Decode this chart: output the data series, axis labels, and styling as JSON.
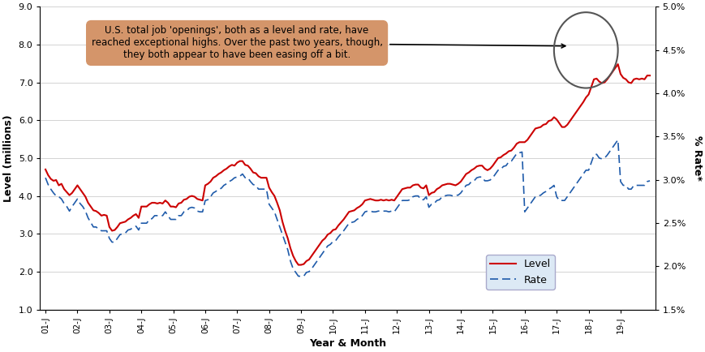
{
  "xlabel": "Year & Month",
  "ylabel_left": "Level (millions)",
  "ylabel_right": "% Rate*",
  "ylim_left": [
    1.0,
    9.0
  ],
  "ylim_right": [
    0.015,
    0.05
  ],
  "yticks_left": [
    1.0,
    2.0,
    3.0,
    4.0,
    5.0,
    6.0,
    7.0,
    8.0,
    9.0
  ],
  "yticks_right": [
    0.015,
    0.02,
    0.025,
    0.03,
    0.035,
    0.04,
    0.045,
    0.05
  ],
  "ytick_labels_right": [
    "1.5%",
    "2.0%",
    "2.5%",
    "3.0%",
    "3.5%",
    "4.0%",
    "4.5%",
    "5.0%"
  ],
  "annotation_text": "U.S. total job 'openings', both as a level and rate, have\nreached exceptional highs. Over the past two years, though,\nthey both appear to have been easing off a bit.",
  "level_color": "#cc0000",
  "rate_color": "#1f5baa",
  "background_color": "#ffffff",
  "grid_color": "#cccccc",
  "annotation_box_color": "#d4956a",
  "legend_facecolor": "#dce9f5",
  "x_tick_labels": [
    "01-J",
    "02-J",
    "03-J",
    "04-J",
    "05-J",
    "06-J",
    "07-J",
    "08-J",
    "09-J",
    "10-J",
    "11-J",
    "12-J",
    "13-J",
    "14-J",
    "15-J",
    "16-J",
    "17-J",
    "18-J",
    "19-J"
  ],
  "level_data": [
    4.7,
    4.55,
    4.45,
    4.4,
    4.42,
    4.28,
    4.32,
    4.18,
    4.1,
    4.02,
    4.08,
    4.18,
    4.28,
    4.18,
    4.08,
    3.98,
    3.82,
    3.72,
    3.62,
    3.6,
    3.55,
    3.48,
    3.5,
    3.48,
    3.18,
    3.08,
    3.1,
    3.18,
    3.28,
    3.3,
    3.32,
    3.38,
    3.42,
    3.48,
    3.52,
    3.42,
    3.72,
    3.72,
    3.72,
    3.78,
    3.82,
    3.82,
    3.8,
    3.82,
    3.8,
    3.88,
    3.82,
    3.72,
    3.72,
    3.7,
    3.8,
    3.82,
    3.9,
    3.92,
    3.98,
    4.0,
    3.98,
    3.92,
    3.9,
    3.88,
    4.28,
    4.32,
    4.38,
    4.48,
    4.52,
    4.58,
    4.62,
    4.68,
    4.72,
    4.78,
    4.82,
    4.8,
    4.88,
    4.92,
    4.92,
    4.82,
    4.8,
    4.72,
    4.62,
    4.6,
    4.52,
    4.48,
    4.48,
    4.48,
    4.22,
    4.1,
    4.0,
    3.82,
    3.62,
    3.32,
    3.08,
    2.88,
    2.62,
    2.42,
    2.28,
    2.18,
    2.18,
    2.2,
    2.28,
    2.32,
    2.42,
    2.52,
    2.62,
    2.72,
    2.82,
    2.88,
    2.98,
    3.02,
    3.1,
    3.12,
    3.22,
    3.3,
    3.38,
    3.48,
    3.58,
    3.6,
    3.62,
    3.68,
    3.72,
    3.78,
    3.88,
    3.9,
    3.92,
    3.9,
    3.88,
    3.88,
    3.9,
    3.88,
    3.9,
    3.88,
    3.9,
    3.88,
    3.98,
    4.08,
    4.18,
    4.2,
    4.22,
    4.22,
    4.28,
    4.3,
    4.3,
    4.22,
    4.2,
    4.28,
    4.02,
    4.08,
    4.1,
    4.18,
    4.22,
    4.28,
    4.3,
    4.32,
    4.32,
    4.3,
    4.28,
    4.32,
    4.38,
    4.48,
    4.58,
    4.62,
    4.68,
    4.72,
    4.78,
    4.8,
    4.8,
    4.72,
    4.68,
    4.72,
    4.8,
    4.9,
    5.0,
    5.02,
    5.08,
    5.12,
    5.18,
    5.2,
    5.28,
    5.38,
    5.42,
    5.42,
    5.42,
    5.48,
    5.58,
    5.68,
    5.78,
    5.8,
    5.82,
    5.88,
    5.9,
    5.98,
    6.0,
    6.08,
    6.02,
    5.92,
    5.82,
    5.82,
    5.88,
    5.98,
    6.08,
    6.18,
    6.28,
    6.38,
    6.48,
    6.6,
    6.68,
    6.88,
    7.08,
    7.1,
    7.02,
    6.98,
    7.0,
    7.08,
    7.18,
    7.28,
    7.38,
    7.48,
    7.22,
    7.12,
    7.08,
    7.0,
    6.98,
    7.08,
    7.1,
    7.08,
    7.1,
    7.08,
    7.18,
    7.18
  ],
  "rate_data": [
    4.48,
    4.3,
    4.18,
    4.08,
    4.0,
    3.98,
    3.92,
    3.8,
    3.72,
    3.6,
    3.72,
    3.82,
    3.92,
    3.8,
    3.72,
    3.6,
    3.42,
    3.3,
    3.18,
    3.18,
    3.12,
    3.08,
    3.08,
    3.08,
    2.88,
    2.78,
    2.78,
    2.88,
    2.98,
    3.0,
    3.02,
    3.1,
    3.12,
    3.18,
    3.2,
    3.1,
    3.28,
    3.28,
    3.28,
    3.38,
    3.4,
    3.48,
    3.48,
    3.48,
    3.48,
    3.58,
    3.48,
    3.38,
    3.38,
    3.38,
    3.48,
    3.48,
    3.58,
    3.6,
    3.68,
    3.7,
    3.68,
    3.6,
    3.58,
    3.58,
    3.88,
    3.9,
    3.98,
    4.08,
    4.12,
    4.18,
    4.2,
    4.28,
    4.32,
    4.38,
    4.42,
    4.48,
    4.5,
    4.52,
    4.58,
    4.48,
    4.48,
    4.38,
    4.3,
    4.28,
    4.18,
    4.18,
    4.18,
    4.18,
    3.78,
    3.68,
    3.58,
    3.38,
    3.18,
    2.98,
    2.78,
    2.58,
    2.28,
    2.08,
    1.98,
    1.88,
    1.88,
    1.88,
    1.98,
    2.0,
    2.08,
    2.18,
    2.28,
    2.38,
    2.48,
    2.58,
    2.68,
    2.72,
    2.8,
    2.82,
    2.92,
    3.0,
    3.08,
    3.18,
    3.28,
    3.3,
    3.32,
    3.38,
    3.42,
    3.48,
    3.58,
    3.6,
    3.6,
    3.58,
    3.58,
    3.6,
    3.6,
    3.6,
    3.6,
    3.58,
    3.6,
    3.58,
    3.68,
    3.78,
    3.88,
    3.88,
    3.88,
    3.9,
    3.98,
    4.0,
    4.0,
    3.9,
    3.9,
    3.98,
    3.7,
    3.78,
    3.8,
    3.88,
    3.9,
    3.98,
    4.0,
    4.02,
    4.02,
    4.0,
    4.02,
    4.02,
    4.08,
    4.18,
    4.28,
    4.3,
    4.38,
    4.4,
    4.48,
    4.5,
    4.5,
    4.4,
    4.4,
    4.42,
    4.48,
    4.58,
    4.68,
    4.7,
    4.78,
    4.8,
    4.9,
    4.92,
    5.02,
    5.12,
    5.14,
    5.16,
    3.58,
    3.68,
    3.78,
    3.88,
    3.98,
    4.0,
    4.02,
    4.08,
    4.12,
    4.18,
    4.22,
    4.28,
    3.98,
    3.88,
    3.88,
    3.88,
    3.98,
    4.08,
    4.18,
    4.28,
    4.38,
    4.48,
    4.58,
    4.68,
    4.68,
    4.88,
    5.08,
    5.1,
    5.0,
    4.98,
    5.0,
    5.08,
    5.18,
    5.28,
    5.38,
    5.48,
    4.38,
    4.28,
    4.28,
    4.18,
    4.18,
    4.28,
    4.28,
    4.28,
    4.28,
    4.28,
    4.38,
    4.4
  ]
}
